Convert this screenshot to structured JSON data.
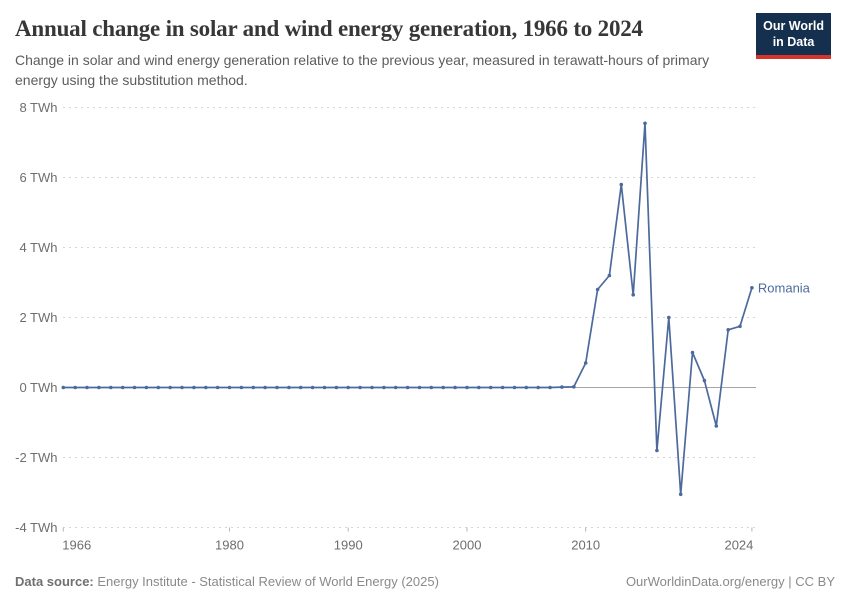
{
  "header": {
    "title": "Annual change in solar and wind energy generation, 1966 to 2024",
    "subtitle": "Change in solar and wind energy generation relative to the previous year, measured in terawatt-hours of primary energy using the substitution method.",
    "logo": {
      "line1": "Our World",
      "line2": "in Data",
      "bg_color": "#15304f",
      "stripe_color": "#d8352a"
    }
  },
  "chart_data": {
    "type": "line",
    "title": "Annual change in solar and wind energy generation, 1966 to 2024",
    "unit": "TWh",
    "xlim": [
      1966,
      2024
    ],
    "ylim": [
      -4,
      8
    ],
    "x_ticks": [
      1966,
      1980,
      1990,
      2000,
      2010,
      2024
    ],
    "y_ticks": [
      8,
      6,
      4,
      2,
      0,
      -2,
      -4
    ],
    "y_tick_suffix": " TWh",
    "grid": "horizontal-dashed",
    "zero_line": true,
    "legend_position": "line-end-label",
    "x": [
      1966,
      1967,
      1968,
      1969,
      1970,
      1971,
      1972,
      1973,
      1974,
      1975,
      1976,
      1977,
      1978,
      1979,
      1980,
      1981,
      1982,
      1983,
      1984,
      1985,
      1986,
      1987,
      1988,
      1989,
      1990,
      1991,
      1992,
      1993,
      1994,
      1995,
      1996,
      1997,
      1998,
      1999,
      2000,
      2001,
      2002,
      2003,
      2004,
      2005,
      2006,
      2007,
      2008,
      2009,
      2010,
      2011,
      2012,
      2013,
      2014,
      2015,
      2016,
      2017,
      2018,
      2019,
      2020,
      2021,
      2022,
      2023,
      2024
    ],
    "series": [
      {
        "name": "Romania",
        "color": "#4C6A9C",
        "values": [
          0,
          0,
          0,
          0,
          0,
          0,
          0,
          0,
          0,
          0,
          0,
          0,
          0,
          0,
          0,
          0,
          0,
          0,
          0,
          0,
          0,
          0,
          0,
          0,
          0,
          0,
          0,
          0,
          0,
          0,
          0,
          0,
          0,
          0,
          0,
          0,
          0,
          0,
          0,
          0,
          0,
          0,
          0.01,
          0.02,
          0.7,
          2.8,
          3.2,
          5.8,
          2.65,
          7.55,
          -1.8,
          2.0,
          -3.05,
          1.0,
          0.2,
          -1.1,
          1.65,
          1.75,
          2.85
        ]
      }
    ],
    "colors": {
      "gridline": "#d6d6d6",
      "zero_line": "#a5a5a5",
      "axis_text": "#6e6e6e"
    }
  },
  "footer": {
    "source_label": "Data source:",
    "source_text": "Energy Institute - Statistical Review of World Energy (2025)",
    "credit": "OurWorldinData.org/energy | CC BY"
  }
}
